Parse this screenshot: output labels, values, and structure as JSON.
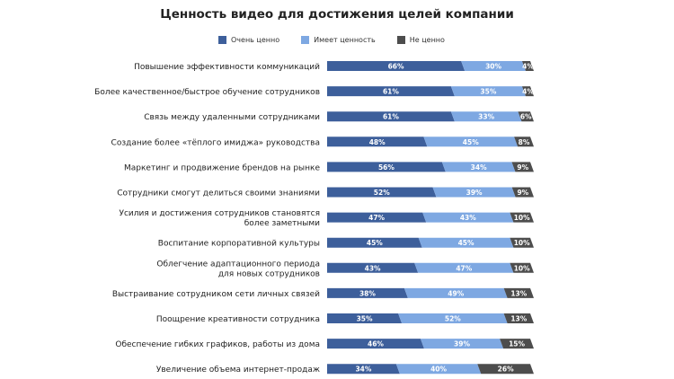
{
  "chart_data": {
    "type": "bar",
    "orientation": "horizontal",
    "stacked": true,
    "title": "Ценность видео для достижения целей компании",
    "legend_position": "top",
    "categories": [
      [
        "Повышение эффективности коммуникаций"
      ],
      [
        "Более качественное/быстрое обучение сотрудников"
      ],
      [
        "Связь между удаленными сотрудниками"
      ],
      [
        "Создание более «тёплого имиджа» руководства"
      ],
      [
        "Маркетинг и продвижение брендов на рынке"
      ],
      [
        "Сотрудники смогут делиться своими знаниями"
      ],
      [
        "Усилия и достижения сотрудников становятся",
        "более заметными"
      ],
      [
        "Воспитание корпоративной культуры"
      ],
      [
        "Облегчение адаптационного периода",
        "для новых сотрудников"
      ],
      [
        "Выстраивание сотрудником сети личных связей"
      ],
      [
        "Поощрение креативности сотрудника"
      ],
      [
        "Обеспечение гибких графиков, работы из дома"
      ],
      [
        "Увеличение объема интернет-продаж"
      ]
    ],
    "series": [
      {
        "name": "Очень ценно",
        "color": "#3d5f9b",
        "values": [
          66,
          61,
          61,
          48,
          56,
          52,
          47,
          45,
          43,
          38,
          35,
          46,
          34
        ]
      },
      {
        "name": "Имеет ценность",
        "color": "#7ea8e2",
        "values": [
          30,
          35,
          33,
          45,
          34,
          39,
          43,
          45,
          47,
          49,
          52,
          39,
          40
        ]
      },
      {
        "name": "Не ценно",
        "color": "#4d4d4d",
        "values": [
          4,
          4,
          6,
          8,
          9,
          9,
          10,
          10,
          10,
          13,
          13,
          15,
          26
        ]
      }
    ],
    "value_suffix": "%"
  }
}
